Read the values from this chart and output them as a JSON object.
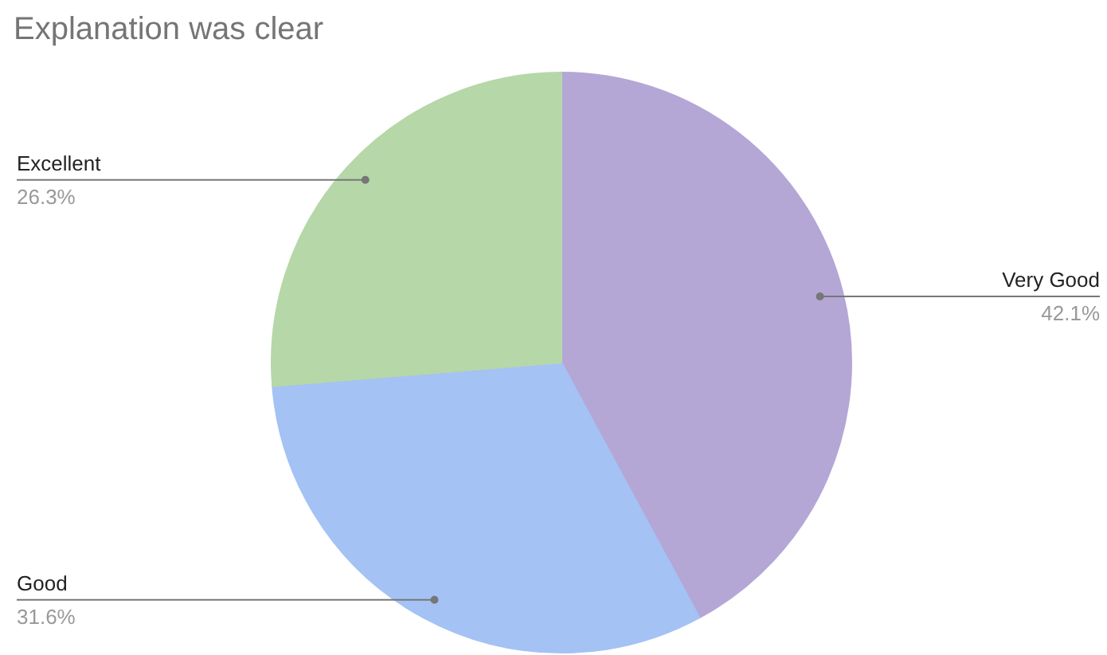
{
  "chart_data": {
    "type": "pie",
    "title": "Explanation was clear",
    "categories": [
      "Very Good",
      "Good",
      "Excellent"
    ],
    "values": [
      42.1,
      31.6,
      26.3
    ],
    "colors": [
      "#b4a7d6",
      "#a4c2f4",
      "#b6d7a8"
    ],
    "value_labels": [
      "42.1%",
      "31.6%",
      "26.3%"
    ]
  }
}
